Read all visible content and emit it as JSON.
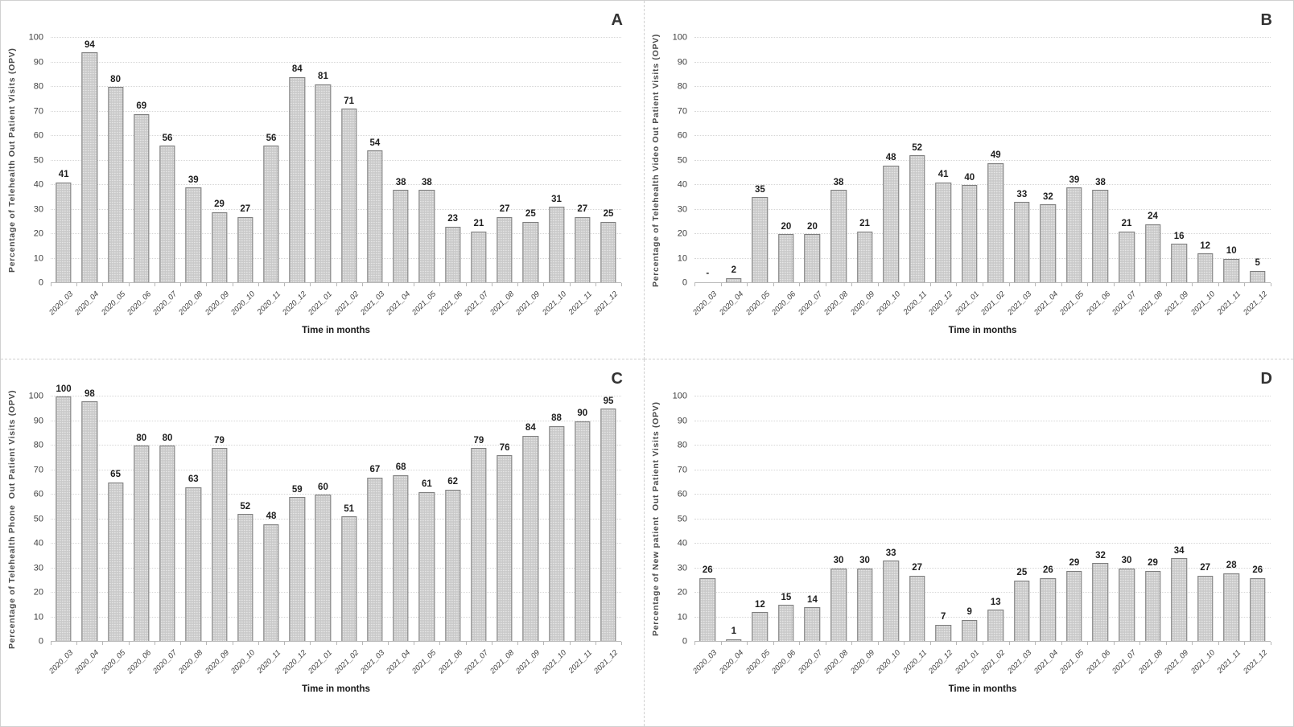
{
  "chart_data": [
    {
      "type": "bar",
      "panel_label": "A",
      "title": "",
      "xlabel": "Time in months",
      "ylabel": "Percentage of Telehealth Out Patient Visits (OPV)",
      "ylim": [
        0,
        100
      ],
      "y_ticks": [
        0,
        10,
        20,
        30,
        40,
        50,
        60,
        70,
        80,
        90,
        100
      ],
      "grid": true,
      "legend": "none",
      "categories": [
        "2020_03",
        "2020_04",
        "2020_05",
        "2020_06",
        "2020_07",
        "2020_08",
        "2020_09",
        "2020_10",
        "2020_11",
        "2020_12",
        "2021_01",
        "2021_02",
        "2021_03",
        "2021_04",
        "2021_05",
        "2021_06",
        "2021_07",
        "2021_08",
        "2021_09",
        "2021_10",
        "2021_11",
        "2021_12"
      ],
      "values": [
        41,
        94,
        80,
        69,
        56,
        39,
        29,
        27,
        56,
        84,
        81,
        71,
        54,
        38,
        38,
        23,
        21,
        27,
        25,
        31,
        27,
        25
      ]
    },
    {
      "type": "bar",
      "panel_label": "B",
      "title": "",
      "xlabel": "Time in months",
      "ylabel": "Percentage of Telehealth Video Out Patient Visits (OPV)",
      "ylim": [
        0,
        100
      ],
      "y_ticks": [
        0,
        10,
        20,
        30,
        40,
        50,
        60,
        70,
        80,
        90,
        100
      ],
      "grid": true,
      "legend": "none",
      "categories": [
        "2020_03",
        "2020_04",
        "2020_05",
        "2020_06",
        "2020_07",
        "2020_08",
        "2020_09",
        "2020_10",
        "2020_11",
        "2020_12",
        "2021_01",
        "2021_02",
        "2021_03",
        "2021_04",
        "2021_05",
        "2021_06",
        "2021_07",
        "2021_08",
        "2021_09",
        "2021_10",
        "2021_11",
        "2021_12"
      ],
      "values": [
        "-",
        2,
        35,
        20,
        20,
        38,
        21,
        48,
        52,
        41,
        40,
        49,
        33,
        32,
        39,
        38,
        21,
        24,
        16,
        12,
        10,
        5
      ]
    },
    {
      "type": "bar",
      "panel_label": "C",
      "title": "",
      "xlabel": "Time in months",
      "ylabel": "Percentage of Telehealth Phone  Out Patient Visits (OPV)",
      "ylim": [
        0,
        100
      ],
      "y_ticks": [
        0,
        10,
        20,
        30,
        40,
        50,
        60,
        70,
        80,
        90,
        100
      ],
      "grid": true,
      "legend": "none",
      "categories": [
        "2020_03",
        "2020_04",
        "2020_05",
        "2020_06",
        "2020_07",
        "2020_08",
        "2020_09",
        "2020_10",
        "2020_11",
        "2020_12",
        "2021_01",
        "2021_02",
        "2021_03",
        "2021_04",
        "2021_05",
        "2021_06",
        "2021_07",
        "2021_08",
        "2021_09",
        "2021_10",
        "2021_11",
        "2021_12"
      ],
      "values": [
        100,
        98,
        65,
        80,
        80,
        63,
        79,
        52,
        48,
        59,
        60,
        51,
        67,
        68,
        61,
        62,
        79,
        76,
        84,
        88,
        90,
        95
      ]
    },
    {
      "type": "bar",
      "panel_label": "D",
      "title": "",
      "xlabel": "Time in months",
      "ylabel": "Percentage of New patient  Out Patient Visits (OPV)",
      "ylim": [
        0,
        100
      ],
      "y_ticks": [
        0,
        10,
        20,
        30,
        40,
        50,
        60,
        70,
        80,
        90,
        100
      ],
      "grid": true,
      "legend": "none",
      "categories": [
        "2020_03",
        "2020_04",
        "2020_05",
        "2020_06",
        "2020_07",
        "2020_08",
        "2020_09",
        "2020_10",
        "2020_11",
        "2020_12",
        "2021_01",
        "2021_02",
        "2021_03",
        "2021_04",
        "2021_05",
        "2021_06",
        "2021_07",
        "2021_08",
        "2021_09",
        "2021_10",
        "2021_11",
        "2021_12"
      ],
      "values": [
        26,
        1,
        12,
        15,
        14,
        30,
        30,
        33,
        27,
        7,
        9,
        13,
        25,
        26,
        29,
        32,
        30,
        29,
        34,
        27,
        28,
        26
      ]
    }
  ],
  "style": {
    "bar_fill": "#c9c9c9",
    "bar_dot": "#e9e9e9",
    "bar_border": "#7d7d7d",
    "gridline": "#d6d6d6",
    "axis_line": "#b8b8b8",
    "divider": "#d0d0d0",
    "label_color": "#1f1f1f",
    "tick_label_color": "#3f3f3f",
    "category_label_color": "#3f3f3f",
    "panel_letter_color": "#333333"
  }
}
